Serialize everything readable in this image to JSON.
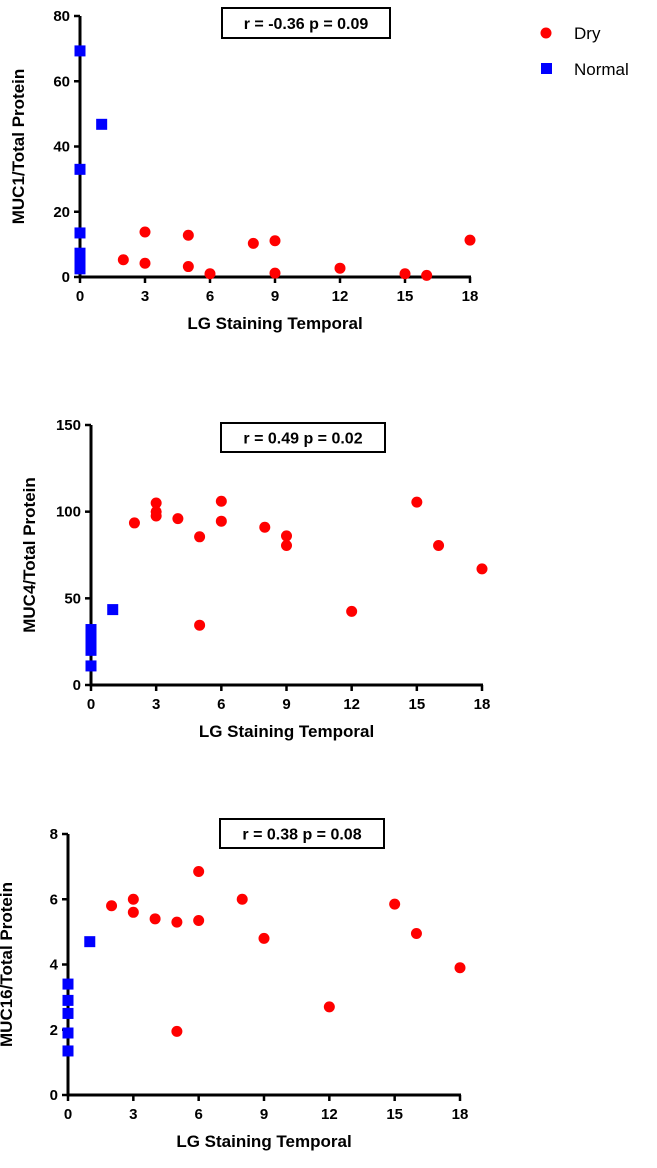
{
  "legend": {
    "items": [
      {
        "label": "Dry",
        "color": "#ff0000",
        "marker": "circle"
      },
      {
        "label": "Normal",
        "color": "#0000ff",
        "marker": "square"
      }
    ],
    "placement": "top-right"
  },
  "chart_data": [
    {
      "type": "scatter",
      "stat_label": "r = -0.36 p = 0.09",
      "xlabel": "LG Staining Temporal",
      "ylabel": "MUC1/Total Protein",
      "xlim": [
        0,
        18
      ],
      "ylim": [
        0,
        80
      ],
      "xticks": [
        0,
        3,
        6,
        9,
        12,
        15,
        18
      ],
      "yticks": [
        0,
        20,
        40,
        60,
        80
      ],
      "grid": false,
      "series": [
        {
          "name": "Dry",
          "color": "#ff0000",
          "marker": "circle",
          "points": [
            [
              2,
              5.3
            ],
            [
              3,
              13.8
            ],
            [
              3,
              4.2
            ],
            [
              5,
              12.8
            ],
            [
              5,
              3.2
            ],
            [
              6,
              1.0
            ],
            [
              8,
              10.3
            ],
            [
              9,
              11.1
            ],
            [
              9,
              1.2
            ],
            [
              12,
              2.7
            ],
            [
              15,
              1.0
            ],
            [
              16,
              0.5
            ],
            [
              18,
              11.3
            ]
          ]
        },
        {
          "name": "Normal",
          "color": "#0000ff",
          "marker": "square",
          "points": [
            [
              0,
              69.3
            ],
            [
              0,
              33.0
            ],
            [
              0,
              13.5
            ],
            [
              0,
              7.3
            ],
            [
              0,
              4.8
            ],
            [
              0,
              2.5
            ],
            [
              1,
              46.8
            ]
          ]
        }
      ]
    },
    {
      "type": "scatter",
      "stat_label": "r = 0.49 p = 0.02",
      "xlabel": "LG Staining Temporal",
      "ylabel": "MUC4/Total Protein",
      "xlim": [
        0,
        18
      ],
      "ylim": [
        0,
        150
      ],
      "xticks": [
        0,
        3,
        6,
        9,
        12,
        15,
        18
      ],
      "yticks": [
        0,
        50,
        100,
        150
      ],
      "grid": false,
      "series": [
        {
          "name": "Dry",
          "color": "#ff0000",
          "marker": "circle",
          "points": [
            [
              2,
              93.5
            ],
            [
              3,
              105
            ],
            [
              3,
              100
            ],
            [
              3,
              97.5
            ],
            [
              4,
              96
            ],
            [
              5,
              85.5
            ],
            [
              5,
              34.5
            ],
            [
              6,
              106
            ],
            [
              6,
              94.5
            ],
            [
              8,
              91
            ],
            [
              9,
              86
            ],
            [
              9,
              80.5
            ],
            [
              12,
              42.5
            ],
            [
              15,
              105.5
            ],
            [
              16,
              80.5
            ],
            [
              18,
              67
            ]
          ]
        },
        {
          "name": "Normal",
          "color": "#0000ff",
          "marker": "square",
          "points": [
            [
              0,
              32
            ],
            [
              0,
              28
            ],
            [
              0,
              24
            ],
            [
              0,
              20
            ],
            [
              0,
              11
            ],
            [
              1,
              43.5
            ]
          ]
        }
      ]
    },
    {
      "type": "scatter",
      "stat_label": "r = 0.38 p = 0.08",
      "xlabel": "LG Staining Temporal",
      "ylabel": "MUC16/Total Protein",
      "xlim": [
        0,
        18
      ],
      "ylim": [
        0,
        8
      ],
      "xticks": [
        0,
        3,
        6,
        9,
        12,
        15,
        18
      ],
      "yticks": [
        0,
        2,
        4,
        6,
        8
      ],
      "grid": false,
      "series": [
        {
          "name": "Dry",
          "color": "#ff0000",
          "marker": "circle",
          "points": [
            [
              2,
              5.8
            ],
            [
              3,
              6.0
            ],
            [
              3,
              5.6
            ],
            [
              4,
              5.4
            ],
            [
              5,
              5.3
            ],
            [
              5,
              1.95
            ],
            [
              6,
              6.85
            ],
            [
              6,
              5.35
            ],
            [
              8,
              6.0
            ],
            [
              9,
              4.8
            ],
            [
              12,
              2.7
            ],
            [
              15,
              5.85
            ],
            [
              16,
              4.95
            ],
            [
              18,
              3.9
            ]
          ]
        },
        {
          "name": "Normal",
          "color": "#0000ff",
          "marker": "square",
          "points": [
            [
              0,
              3.4
            ],
            [
              0,
              2.9
            ],
            [
              0,
              2.5
            ],
            [
              0,
              1.9
            ],
            [
              0,
              1.35
            ],
            [
              1,
              4.7
            ]
          ]
        }
      ]
    }
  ]
}
